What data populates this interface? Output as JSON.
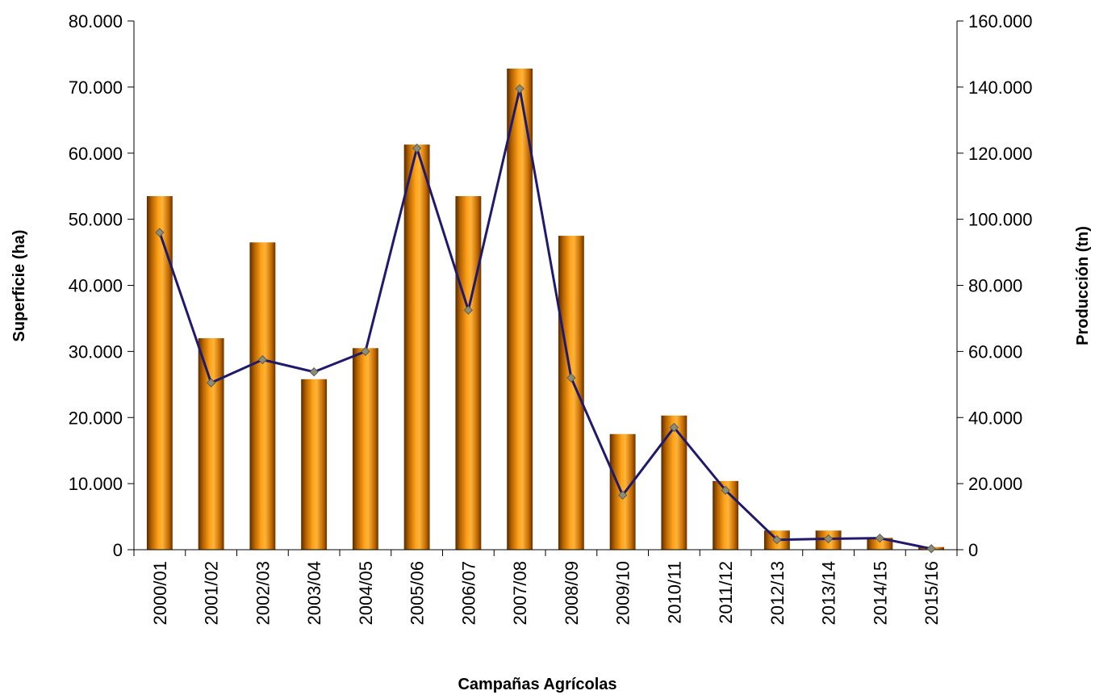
{
  "chart_data": {
    "type": "bar",
    "xlabel": "Campañas Agrícolas",
    "ylabel": "Superficie (ha)",
    "y2label": "Producción (tn)",
    "categories": [
      "2000/01",
      "2001/02",
      "2002/03",
      "2003/04",
      "2004/05",
      "2005/06",
      "2006/07",
      "2007/08",
      "2008/09",
      "2009/10",
      "2010/11",
      "2011/12",
      "2012/13",
      "2013/14",
      "2014/15",
      "2015/16"
    ],
    "series": [
      {
        "type": "bar",
        "axis": "left",
        "color": "#F39200",
        "values": [
          53500,
          32000,
          46500,
          25800,
          30500,
          61300,
          53500,
          72800,
          47500,
          17500,
          20300,
          10400,
          2900,
          2900,
          1800,
          400
        ]
      },
      {
        "type": "line",
        "axis": "right",
        "color": "#1F1A6B",
        "marker_color": "#8C8C78",
        "values": [
          96000,
          50500,
          57500,
          53800,
          60000,
          121500,
          72500,
          139500,
          52000,
          16500,
          37000,
          18000,
          3000,
          3300,
          3500,
          300
        ]
      }
    ],
    "y_ticks": [
      "0",
      "10.000",
      "20.000",
      "30.000",
      "40.000",
      "50.000",
      "60.000",
      "70.000",
      "80.000"
    ],
    "y2_ticks": [
      "0",
      "20.000",
      "40.000",
      "60.000",
      "80.000",
      "100.000",
      "120.000",
      "140.000",
      "160.000"
    ],
    "ylim": [
      0,
      80000
    ],
    "y2lim": [
      0,
      160000
    ],
    "grid": false,
    "legend": "none"
  }
}
